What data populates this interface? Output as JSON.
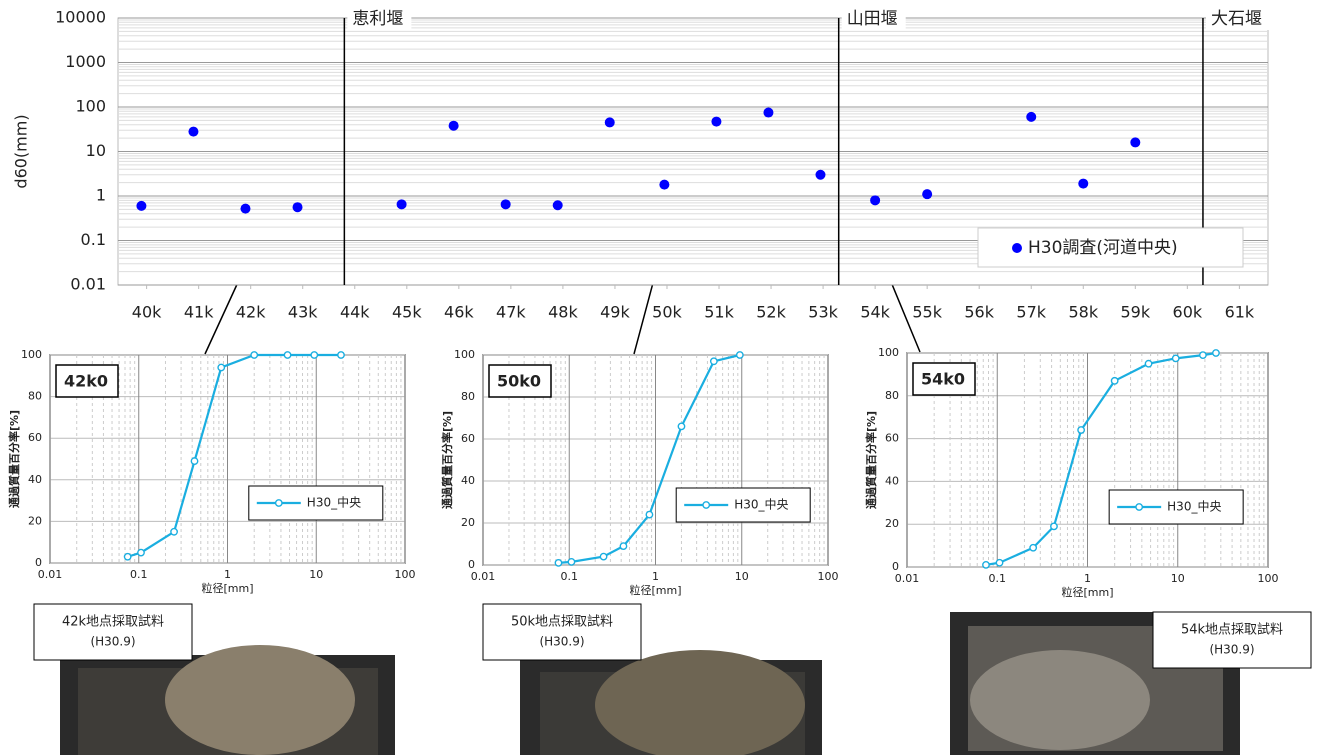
{
  "chart_data": [
    {
      "type": "scatter",
      "y_label": "d60(mm)",
      "ylog": true,
      "ylim": [
        0.01,
        10000
      ],
      "yticks": [
        0.01,
        0.1,
        1,
        10,
        100,
        1000,
        10000
      ],
      "xlim": [
        39.45,
        61.55
      ],
      "xticks": [
        {
          "value": 40,
          "label": "40k"
        },
        {
          "value": 41,
          "label": "41k"
        },
        {
          "value": 42,
          "label": "42k"
        },
        {
          "value": 43,
          "label": "43k"
        },
        {
          "value": 44,
          "label": "44k"
        },
        {
          "value": 45,
          "label": "45k"
        },
        {
          "value": 46,
          "label": "46k"
        },
        {
          "value": 47,
          "label": "47k"
        },
        {
          "value": 48,
          "label": "48k"
        },
        {
          "value": 49,
          "label": "49k"
        },
        {
          "value": 50,
          "label": "50k"
        },
        {
          "value": 51,
          "label": "51k"
        },
        {
          "value": 52,
          "label": "52k"
        },
        {
          "value": 53,
          "label": "53k"
        },
        {
          "value": 54,
          "label": "54k"
        },
        {
          "value": 55,
          "label": "55k"
        },
        {
          "value": 56,
          "label": "56k"
        },
        {
          "value": 57,
          "label": "57k"
        },
        {
          "value": 58,
          "label": "58k"
        },
        {
          "value": 59,
          "label": "59k"
        },
        {
          "value": 60,
          "label": "60k"
        },
        {
          "value": 61,
          "label": "61k"
        }
      ],
      "x": [
        39.9,
        40.9,
        41.9,
        42.9,
        44.9,
        45.9,
        46.9,
        47.9,
        48.9,
        49.95,
        50.95,
        51.95,
        52.95,
        54,
        55,
        57,
        58,
        59
      ],
      "series": [
        {
          "name": "H30調査(河道中央)",
          "color": "#0000ff",
          "values": [
            0.6,
            28,
            0.52,
            0.56,
            0.65,
            38,
            0.65,
            0.62,
            45,
            1.8,
            47,
            75,
            3,
            0.8,
            1.1,
            60,
            1.9,
            16
          ]
        }
      ],
      "weirs": [
        {
          "label": "恵利堰",
          "x": 43.8
        },
        {
          "label": "山田堰",
          "x": 53.3
        },
        {
          "label": "大石堰",
          "x": 60.3
        }
      ],
      "grid": true
    },
    {
      "type": "line",
      "title": "42k0",
      "x_label": "粒径[mm]",
      "y_label": "通過質量百分率[%]",
      "xlog": true,
      "xlim": [
        0.01,
        100
      ],
      "xticks": [
        0.01,
        0.1,
        1,
        10,
        100
      ],
      "ylim": [
        0,
        100
      ],
      "yticks": [
        0,
        20,
        40,
        60,
        80,
        100
      ],
      "x": [
        0.075,
        0.106,
        0.25,
        0.425,
        0.85,
        2,
        4.75,
        9.5,
        19
      ],
      "series": [
        {
          "name": "H30_中央",
          "color": "#1aaee0",
          "values": [
            3,
            5,
            15,
            49,
            94,
            100,
            100,
            100,
            100
          ]
        }
      ],
      "grid": true
    },
    {
      "type": "line",
      "title": "50k0",
      "x_label": "粒径[mm]",
      "y_label": "通過質量百分率[%]",
      "xlog": true,
      "xlim": [
        0.01,
        100
      ],
      "xticks": [
        0.01,
        0.1,
        1,
        10,
        100
      ],
      "ylim": [
        0,
        100
      ],
      "yticks": [
        0,
        20,
        40,
        60,
        80,
        100
      ],
      "x": [
        0.075,
        0.106,
        0.25,
        0.425,
        0.85,
        2,
        4.75,
        9.5
      ],
      "series": [
        {
          "name": "H30_中央",
          "color": "#1aaee0",
          "values": [
            1,
            1.5,
            4,
            9,
            24,
            66,
            97,
            100
          ]
        }
      ],
      "grid": true
    },
    {
      "type": "line",
      "title": "54k0",
      "x_label": "粒径[mm]",
      "y_label": "通過質量百分率[%]",
      "xlog": true,
      "xlim": [
        0.01,
        100
      ],
      "xticks": [
        0.01,
        0.1,
        1,
        10,
        100
      ],
      "ylim": [
        0,
        100
      ],
      "yticks": [
        0,
        20,
        40,
        60,
        80,
        100
      ],
      "x": [
        0.075,
        0.106,
        0.25,
        0.425,
        0.85,
        2,
        4.75,
        9.5,
        19,
        26.5
      ],
      "series": [
        {
          "name": "H30_中央",
          "color": "#1aaee0",
          "values": [
            1,
            2,
            9,
            19,
            64,
            87,
            95,
            97.5,
            99,
            100
          ]
        }
      ],
      "grid": true
    }
  ],
  "photos": [
    {
      "caption": "42k地点採取試料",
      "date": "(H30.9)"
    },
    {
      "caption": "50k地点採取試料",
      "date": "(H30.9)"
    },
    {
      "caption": "54k地点採取試料",
      "date": "(H30.9)"
    }
  ]
}
